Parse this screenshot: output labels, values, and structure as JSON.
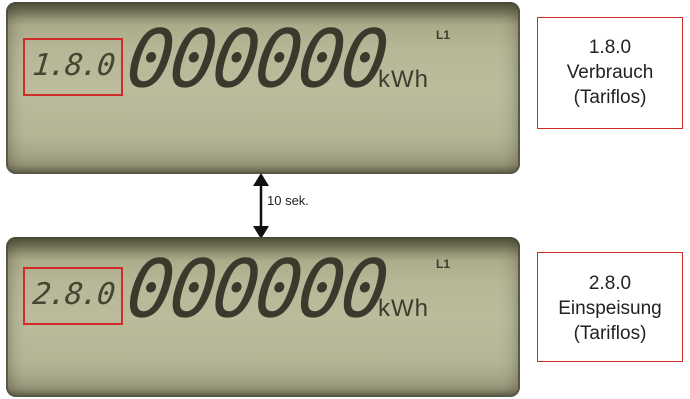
{
  "display_1": {
    "obis": "1.8.0",
    "digits": "000000",
    "unit": "kWh",
    "phase": "L1"
  },
  "display_2": {
    "obis": "2.8.0",
    "digits": "000000",
    "unit": "kWh",
    "phase": "L1"
  },
  "callout_1": {
    "code": "1.8.0",
    "label": "Verbrauch",
    "tariff": "(Tariflos)"
  },
  "callout_2": {
    "code": "2.8.0",
    "label": "Einspeisung",
    "tariff": "(Tariflos)"
  },
  "interval": {
    "label": "10 sek."
  },
  "colors": {
    "highlight": "#d12b2b",
    "lcd_background": "#b7b797",
    "lcd_segments": "#3a392c"
  }
}
